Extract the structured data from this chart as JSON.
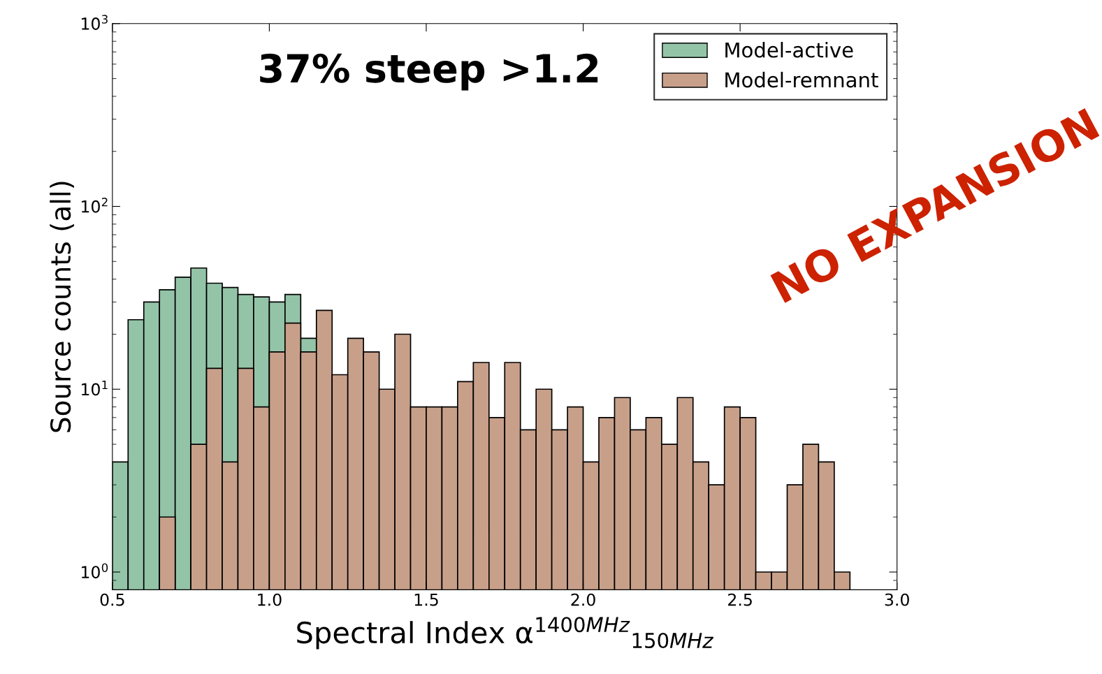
{
  "chart_data": {
    "type": "histogram",
    "xlabel": "Spectral Index α$^{1400MHz}$$_{150MHz}$",
    "ylabel": "Source counts (all)",
    "bins": [
      0.5,
      0.55,
      0.6,
      0.65,
      0.7,
      0.75,
      0.8,
      0.85,
      0.9,
      0.95,
      1.0,
      1.05,
      1.1,
      1.15,
      1.2,
      1.25,
      1.3,
      1.35,
      1.4,
      1.45,
      1.5,
      1.55,
      1.6,
      1.65,
      1.7,
      1.75,
      1.8,
      1.85,
      1.9,
      1.95,
      2.0,
      2.05,
      2.1,
      2.15,
      2.2,
      2.25,
      2.3,
      2.35,
      2.4,
      2.45,
      2.5,
      2.55,
      2.6,
      2.65,
      2.7,
      2.75,
      2.8,
      2.85
    ],
    "series": [
      {
        "name": "Model-active",
        "color": "#94c4a8",
        "values": [
          4,
          24,
          30,
          35,
          41,
          46,
          38,
          36,
          33,
          32,
          30,
          33,
          19,
          null,
          null,
          null,
          null,
          null,
          null,
          null,
          null,
          null,
          null,
          null,
          null,
          null,
          null,
          null,
          null,
          null,
          null,
          null,
          null,
          null,
          null,
          null,
          null,
          null,
          null,
          null,
          null,
          null,
          null,
          null,
          null,
          null,
          null
        ]
      },
      {
        "name": "Model-remnant",
        "color": "#c8a08a",
        "values": [
          null,
          null,
          null,
          2,
          null,
          5,
          13,
          4,
          13,
          8,
          16,
          23,
          16,
          27,
          12,
          19,
          16,
          10,
          20,
          8,
          8,
          8,
          11,
          14,
          7,
          14,
          6,
          10,
          6,
          8,
          4,
          7,
          9,
          6,
          7,
          5,
          9,
          4,
          3,
          8,
          7,
          1,
          1,
          3,
          5,
          4,
          1
        ]
      }
    ],
    "log": "y",
    "xlim": [
      0.5,
      3.0
    ],
    "ylim": [
      0.8,
      1000
    ],
    "xticks": [
      {
        "value": 0.5,
        "label": "0.5"
      },
      {
        "value": 1.0,
        "label": "1.0"
      },
      {
        "value": 1.5,
        "label": "1.5"
      },
      {
        "value": 2.0,
        "label": "2.0"
      },
      {
        "value": 2.5,
        "label": "2.5"
      },
      {
        "value": 3.0,
        "label": "3.0"
      }
    ],
    "yticks": [
      {
        "value": 1,
        "label": "10$^{0}$"
      },
      {
        "value": 10,
        "label": "10$^{1}$"
      },
      {
        "value": 100,
        "label": "10$^{2}$"
      },
      {
        "value": 1000,
        "label": "10$^{3}$"
      }
    ],
    "legend": "top right",
    "grid": false,
    "annotations": [
      "37% steep >1.2",
      "NO EXPANSION"
    ]
  }
}
